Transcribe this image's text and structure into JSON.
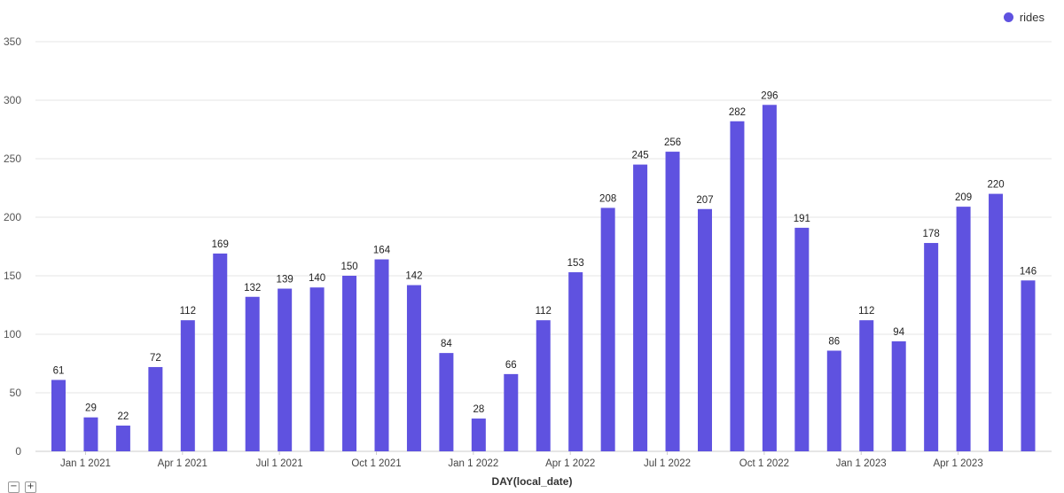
{
  "chart_data": {
    "type": "bar",
    "xlabel": "DAY(local_date)",
    "ylabel": "",
    "ylim": [
      0,
      350
    ],
    "yticks": [
      0,
      50,
      100,
      150,
      200,
      250,
      300,
      350
    ],
    "grid": true,
    "legend_placement": "top-right",
    "x_tick_labels": [
      "Jan 1 2021",
      "Apr 1 2021",
      "Jul 1 2021",
      "Oct 1 2021",
      "Jan 1 2022",
      "Apr 1 2022",
      "Jul 1 2022",
      "Oct 1 2022",
      "Jan 1 2023",
      "Apr 1 2023"
    ],
    "categories": [
      "2020-12",
      "2021-01",
      "2021-02",
      "2021-03",
      "2021-04",
      "2021-05",
      "2021-06",
      "2021-07",
      "2021-08",
      "2021-09",
      "2021-10",
      "2021-11",
      "2021-12",
      "2022-01",
      "2022-02",
      "2022-03",
      "2022-04",
      "2022-05",
      "2022-06",
      "2022-07",
      "2022-08",
      "2022-09",
      "2022-10",
      "2022-11",
      "2022-12",
      "2023-01",
      "2023-02",
      "2023-03",
      "2023-04",
      "2023-05",
      "2023-06"
    ],
    "series": [
      {
        "name": "rides",
        "color": "#5f52e0",
        "values": [
          61,
          29,
          22,
          72,
          112,
          169,
          132,
          139,
          140,
          150,
          164,
          142,
          84,
          28,
          66,
          112,
          153,
          208,
          245,
          256,
          207,
          282,
          296,
          191,
          86,
          112,
          94,
          178,
          209,
          220,
          146
        ]
      }
    ]
  },
  "legend": {
    "label": "rides"
  },
  "zoom": {
    "minus": "−",
    "plus": "+"
  }
}
